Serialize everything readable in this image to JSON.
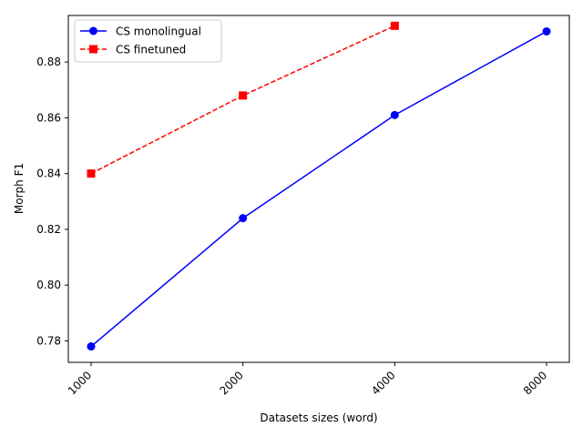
{
  "chart_data": {
    "type": "line",
    "categories": [
      "1000",
      "2000",
      "4000",
      "8000"
    ],
    "series": [
      {
        "name": "CS monolingual",
        "values": [
          0.778,
          0.824,
          0.861,
          0.891
        ],
        "color": "#0000ff",
        "linestyle": "solid",
        "marker": "circle"
      },
      {
        "name": "CS finetuned",
        "values": [
          0.84,
          0.868,
          0.893,
          null
        ],
        "color": "#ff0000",
        "linestyle": "dashed",
        "marker": "square"
      }
    ],
    "title": "",
    "xlabel": "Datasets sizes (word)",
    "ylabel": "Morph F1",
    "ylim": [
      0.7723,
      0.8967
    ],
    "yticks": [
      0.78,
      0.8,
      0.82,
      0.84,
      0.86,
      0.88
    ],
    "ytick_labels": [
      "0.78",
      "0.80",
      "0.82",
      "0.84",
      "0.86",
      "0.88"
    ],
    "xtick_rotation": 45,
    "legend": "upper left",
    "grid": false
  }
}
